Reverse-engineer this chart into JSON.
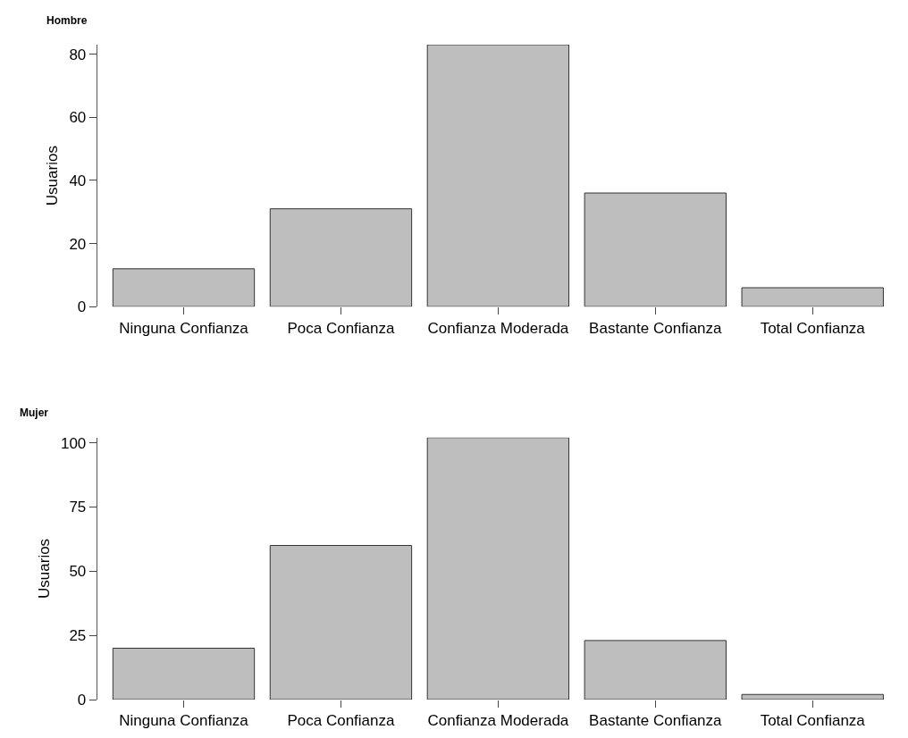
{
  "chart_data": [
    {
      "type": "bar",
      "title": "Hombre",
      "ylabel": "Usuarios",
      "categories": [
        "Ninguna Confianza",
        "Poca Confianza",
        "Confianza Moderada",
        "Bastante Confianza",
        "Total Confianza"
      ],
      "values": [
        12,
        31,
        83,
        36,
        6
      ],
      "color": "#bebebe",
      "ylim": [
        0,
        83
      ],
      "yticks": [
        0,
        20,
        40,
        60,
        80
      ],
      "grid": false
    },
    {
      "type": "bar",
      "title": "Mujer",
      "ylabel": "Usuarios",
      "categories": [
        "Ninguna Confianza",
        "Poca Confianza",
        "Confianza Moderada",
        "Bastante Confianza",
        "Total Confianza"
      ],
      "values": [
        20,
        60,
        102,
        23,
        2
      ],
      "color": "#bebebe",
      "ylim": [
        0,
        102
      ],
      "yticks": [
        0,
        25,
        50,
        75,
        100
      ],
      "grid": false
    }
  ]
}
